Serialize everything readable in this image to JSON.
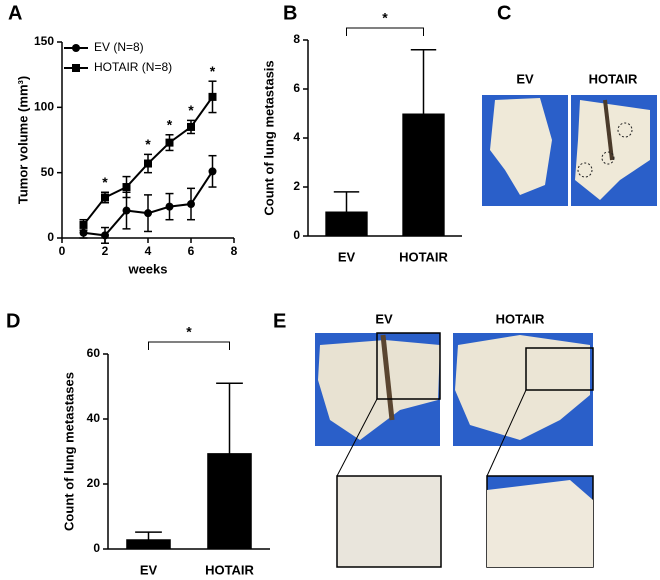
{
  "panel_labels": [
    "A",
    "B",
    "C",
    "D",
    "E"
  ],
  "chart_data": [
    {
      "type": "line",
      "xlabel": "weeks",
      "ylabel": "Tumor volume (mm³)",
      "x": [
        1,
        2,
        3,
        4,
        5,
        6,
        7
      ],
      "xlim": [
        0,
        8
      ],
      "xticks": [
        0,
        2,
        4,
        6,
        8
      ],
      "ylim": [
        0,
        150
      ],
      "yticks": [
        0,
        50,
        100,
        150
      ],
      "legend": "upper left",
      "series": [
        {
          "name": "EV (N=8)",
          "color": "#000000",
          "marker": "circle",
          "values": [
            4,
            2,
            21,
            19,
            24,
            26,
            51
          ],
          "errors": [
            4,
            6,
            14,
            14,
            10,
            12,
            12
          ]
        },
        {
          "name": "HOTAIR (N=8)",
          "color": "#000000",
          "marker": "square",
          "values": [
            10,
            31,
            39,
            57,
            73,
            85,
            108
          ],
          "errors": [
            4,
            4,
            8,
            7,
            6,
            5,
            12
          ]
        }
      ],
      "annotations": [
        null,
        "*",
        null,
        "*",
        "*",
        "*",
        "*"
      ]
    },
    {
      "type": "bar",
      "ylabel": "Count of lung metastasis",
      "categories": [
        "EV",
        "HOTAIR"
      ],
      "values": [
        1,
        5
      ],
      "errors": [
        0.8,
        2.6
      ],
      "color": "#000000",
      "ylim": [
        0,
        8
      ],
      "yticks": [
        0,
        2,
        4,
        6,
        8
      ],
      "significance": "*"
    },
    {
      "type": "bar",
      "ylabel": "Count of lung metastases",
      "categories": [
        "EV",
        "HOTAIR"
      ],
      "values": [
        3,
        29.5
      ],
      "errors": [
        2.2,
        21.5
      ],
      "color": "#000000",
      "ylim": [
        0,
        60
      ],
      "yticks": [
        0,
        20,
        40,
        60
      ],
      "significance": "*"
    }
  ],
  "photos": {
    "c": [
      "EV",
      "HOTAIR"
    ],
    "e": [
      "EV",
      "HOTAIR"
    ]
  }
}
